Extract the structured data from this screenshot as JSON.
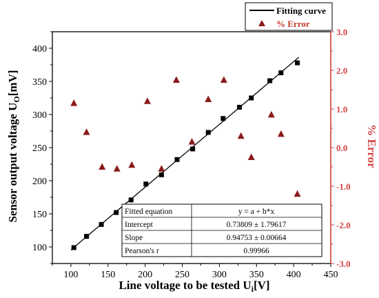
{
  "chart_data": {
    "type": "scatter",
    "xlabel": "Line voltage to be tested U",
    "xlabel_sub": "i",
    "xlabel_unit": "[V]",
    "ylabel": "Sensor output voltage U",
    "ylabel_sub": "O",
    "ylabel_unit": "[mV]",
    "y2label": "% Error",
    "xlim": [
      75,
      450
    ],
    "ylim": [
      75,
      425
    ],
    "y2lim": [
      -3.0,
      3.0
    ],
    "x_ticks": [
      100,
      150,
      200,
      250,
      300,
      350,
      400,
      450
    ],
    "y_ticks": [
      100,
      150,
      200,
      250,
      300,
      350,
      400
    ],
    "y2_ticks": [
      "3.0",
      "2.0",
      "1.0",
      "0.0",
      "-1.0",
      "-2.0",
      "-3.0"
    ],
    "y2_tick_values": [
      3.0,
      2.0,
      1.0,
      0.0,
      -1.0,
      -2.0,
      -3.0
    ],
    "grid": false,
    "legend_position": "top-right",
    "legend": [
      {
        "label": "Fitting curve",
        "marker": "line",
        "color": "#000000"
      },
      {
        "label": "% Error",
        "marker": "triangle",
        "color": "#8b1a1a",
        "text_color": "#c0392b"
      }
    ],
    "colors": {
      "sensor": "#000000",
      "error": "#8b1a1a",
      "right_axis": "#d64545"
    },
    "fit_line": {
      "x": [
        100,
        407
      ],
      "y": [
        95.6,
        386.5
      ]
    },
    "series": [
      {
        "name": "",
        "axis": "left",
        "marker": "square",
        "x": [
          104,
          121,
          141,
          161,
          181,
          201,
          222,
          243,
          264,
          285,
          305,
          327,
          343,
          368,
          383,
          405
        ],
        "y": [
          99,
          116,
          134,
          152,
          171,
          195,
          209,
          232,
          248,
          273,
          294,
          311,
          325,
          351,
          363,
          378
        ]
      },
      {
        "name": "% Error",
        "axis": "right",
        "marker": "triangle",
        "x": [
          104,
          121,
          142,
          162,
          182,
          203,
          222,
          242,
          263,
          285,
          306,
          329,
          343,
          370,
          383,
          405
        ],
        "y": [
          1.15,
          0.4,
          -0.5,
          -0.55,
          -0.45,
          1.2,
          -0.55,
          1.75,
          0.15,
          1.25,
          1.75,
          0.3,
          -0.25,
          0.85,
          0.35,
          -1.2
        ]
      }
    ],
    "table": {
      "rows": [
        [
          "Fitted equation",
          "y = a + b*x"
        ],
        [
          "Intercept",
          "0.73809 ± 1.79617"
        ],
        [
          "Slope",
          "0.94753 ± 0.00664"
        ],
        [
          "Pearson's r",
          "0.99966"
        ]
      ]
    }
  }
}
